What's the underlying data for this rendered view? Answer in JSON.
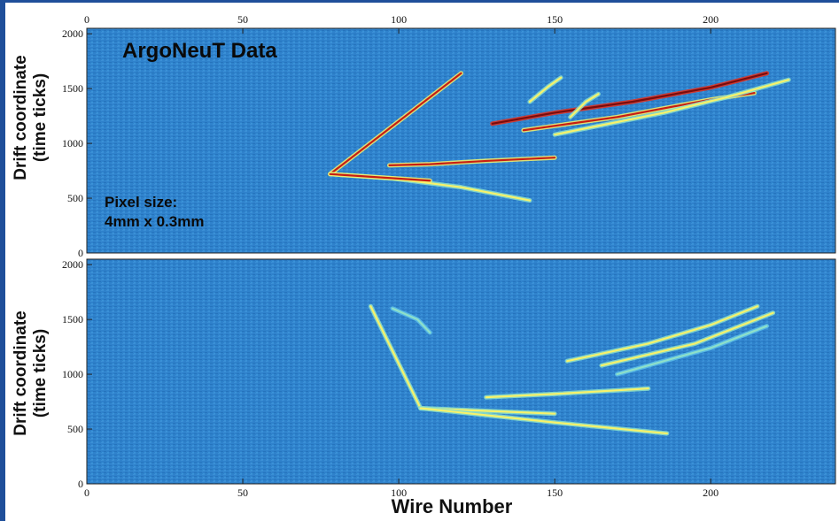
{
  "chart_data": [
    {
      "type": "heatmap",
      "title": "ArgoNeuT Data",
      "annotation": [
        "Pixel size:",
        "4mm x 0.3mm"
      ],
      "xlabel": "",
      "ylabel": [
        "Drift coordinate",
        "(time ticks)"
      ],
      "xlim": [
        0,
        240
      ],
      "ylim": [
        0,
        2050
      ],
      "x_ticks": [
        "0",
        "50",
        "100",
        "150",
        "200"
      ],
      "y_ticks": [
        "0",
        "500",
        "1000",
        "1500",
        "2000"
      ],
      "x_tick_position": "top",
      "colormap": [
        "#1f6fc2",
        "#3fa3e0",
        "#8ee0c8",
        "#f7f26a",
        "#e8301c",
        "#7a0c0c"
      ],
      "tracks": [
        {
          "points": [
            [
              78,
              720
            ],
            [
              120,
              1640
            ]
          ],
          "intensity": "high"
        },
        {
          "points": [
            [
              78,
              720
            ],
            [
              98,
              680
            ],
            [
              120,
              600
            ],
            [
              142,
              480
            ]
          ],
          "intensity": "medium"
        },
        {
          "points": [
            [
              78,
              720
            ],
            [
              110,
              660
            ]
          ],
          "intensity": "high"
        },
        {
          "points": [
            [
              97,
              800
            ],
            [
              110,
              810
            ],
            [
              128,
              840
            ],
            [
              150,
              870
            ]
          ],
          "intensity": "high"
        },
        {
          "points": [
            [
              130,
              1180
            ],
            [
              150,
              1280
            ],
            [
              175,
              1380
            ],
            [
              200,
              1510
            ],
            [
              218,
              1640
            ]
          ],
          "intensity": "very-high"
        },
        {
          "points": [
            [
              140,
              1120
            ],
            [
              170,
              1240
            ],
            [
              200,
              1400
            ],
            [
              214,
              1460
            ]
          ],
          "intensity": "high"
        },
        {
          "points": [
            [
              150,
              1080
            ],
            [
              185,
              1280
            ],
            [
              205,
              1420
            ],
            [
              225,
              1580
            ]
          ],
          "intensity": "medium"
        },
        {
          "points": [
            [
              142,
              1380
            ],
            [
              148,
              1520
            ],
            [
              152,
              1600
            ]
          ],
          "intensity": "medium"
        },
        {
          "points": [
            [
              155,
              1240
            ],
            [
              160,
              1380
            ],
            [
              164,
              1450
            ]
          ],
          "intensity": "medium"
        }
      ]
    },
    {
      "type": "heatmap",
      "title": "",
      "xlabel": "Wire Number",
      "ylabel": [
        "Drift coordinate",
        "(time ticks)"
      ],
      "xlim": [
        0,
        240
      ],
      "ylim": [
        0,
        2050
      ],
      "x_ticks": [
        "0",
        "50",
        "100",
        "150",
        "200"
      ],
      "y_ticks": [
        "0",
        "500",
        "1000",
        "1500",
        "2000"
      ],
      "x_tick_position": "bottom",
      "tracks": [
        {
          "points": [
            [
              91,
              1620
            ],
            [
              107,
              690
            ]
          ],
          "intensity": "medium"
        },
        {
          "points": [
            [
              107,
              690
            ],
            [
              150,
              640
            ]
          ],
          "intensity": "medium"
        },
        {
          "points": [
            [
              107,
              690
            ],
            [
              150,
              560
            ],
            [
              186,
              460
            ]
          ],
          "intensity": "medium"
        },
        {
          "points": [
            [
              128,
              790
            ],
            [
              150,
              820
            ],
            [
              180,
              870
            ]
          ],
          "intensity": "medium"
        },
        {
          "points": [
            [
              154,
              1120
            ],
            [
              180,
              1280
            ],
            [
              200,
              1450
            ],
            [
              215,
              1620
            ]
          ],
          "intensity": "medium"
        },
        {
          "points": [
            [
              165,
              1080
            ],
            [
              195,
              1280
            ],
            [
              220,
              1560
            ]
          ],
          "intensity": "medium"
        },
        {
          "points": [
            [
              170,
              1000
            ],
            [
              200,
              1240
            ],
            [
              218,
              1440
            ]
          ],
          "intensity": "low"
        },
        {
          "points": [
            [
              98,
              1600
            ],
            [
              106,
              1500
            ],
            [
              110,
              1380
            ]
          ],
          "intensity": "low"
        }
      ]
    }
  ]
}
